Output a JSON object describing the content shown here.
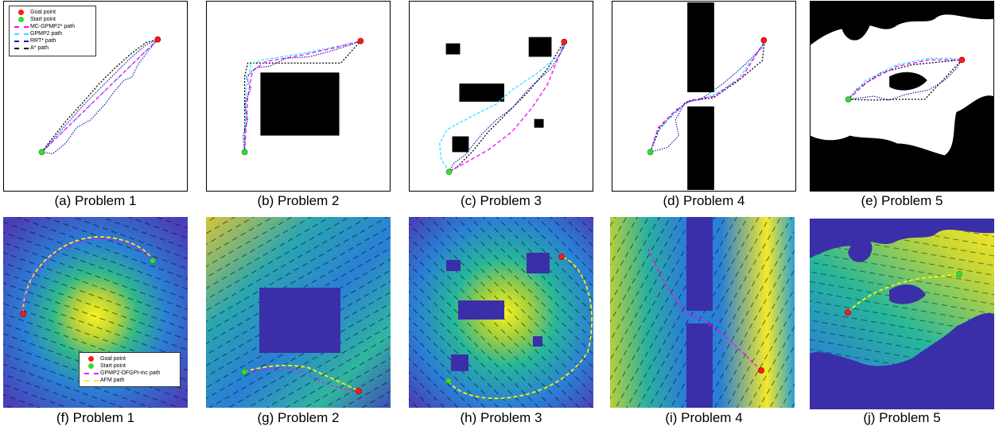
{
  "panels_top": [
    {
      "id": "a",
      "caption": "(a)  Problem  1"
    },
    {
      "id": "b",
      "caption": "(b)  Problem  2"
    },
    {
      "id": "c",
      "caption": "(c)  Problem  3"
    },
    {
      "id": "d",
      "caption": "(d)  Problem  4"
    },
    {
      "id": "e",
      "caption": "(e)  Problem  5"
    }
  ],
  "panels_bottom": [
    {
      "id": "f",
      "caption": "(f)  Problem  1"
    },
    {
      "id": "g",
      "caption": "(g)  Problem  2"
    },
    {
      "id": "h",
      "caption": "(h)  Problem  3"
    },
    {
      "id": "i",
      "caption": "(i)  Problem  4"
    },
    {
      "id": "j",
      "caption": "(j)  Problem  5"
    }
  ],
  "legend_top": {
    "items": [
      {
        "label": "Goal point",
        "kind": "dot",
        "color": "#ff1a1a"
      },
      {
        "label": "Start  point",
        "kind": "dot",
        "color": "#33dd33"
      },
      {
        "label": "MC-GPMP2* path",
        "kind": "line",
        "color": "#ff00ff"
      },
      {
        "label": "GPMP2 path",
        "kind": "line",
        "color": "#33e5ff"
      },
      {
        "label": "RRT* path",
        "kind": "line",
        "color": "#1a1aaa"
      },
      {
        "label": "A* path",
        "kind": "line",
        "color": "#000000"
      }
    ]
  },
  "legend_bottom": {
    "items": [
      {
        "label": "Goal point",
        "kind": "dot",
        "color": "#ff1a1a"
      },
      {
        "label": "Start  point",
        "kind": "dot",
        "color": "#33dd33"
      },
      {
        "label": "GPMP2-DFGPI-mc path",
        "kind": "line",
        "color": "#ff00ff"
      },
      {
        "label": "AFM path",
        "kind": "line",
        "color": "#ffee00"
      }
    ]
  },
  "colors": {
    "goal": "#ff1a1a",
    "start": "#33dd33",
    "mc_gpmp2": "#ff00ff",
    "gpmp2": "#33e5ff",
    "rrt": "#1a1aaa",
    "astar": "#000000",
    "afm": "#ffee00",
    "obstacle_field": "#3a2fa8"
  }
}
